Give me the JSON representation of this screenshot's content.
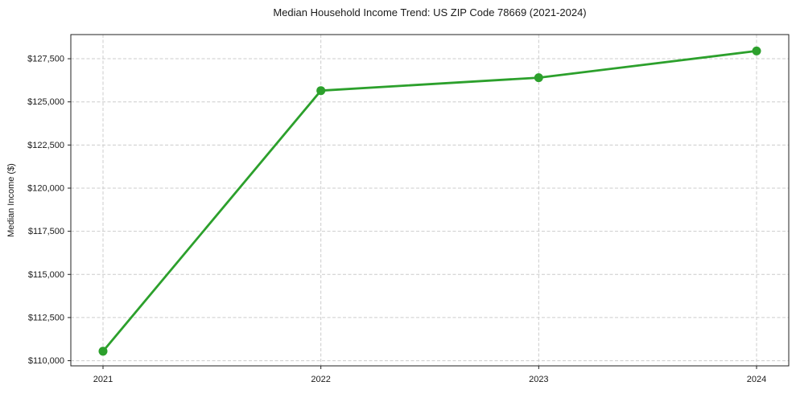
{
  "chart_data": {
    "type": "line",
    "title": "Median Household Income Trend: US ZIP Code 78669 (2021-2024)",
    "xlabel": "",
    "ylabel": "Median Income ($)",
    "categories": [
      "2021",
      "2022",
      "2023",
      "2024"
    ],
    "values": [
      110550,
      125650,
      126400,
      127950
    ],
    "ylim": [
      109700,
      128900
    ],
    "yticks": [
      110000,
      112500,
      115000,
      117500,
      120000,
      122500,
      125000,
      127500
    ],
    "ytick_labels": [
      "$110,000",
      "$112,500",
      "$115,000",
      "$117,500",
      "$120,000",
      "$122,500",
      "$125,000",
      "$127,500"
    ],
    "grid": true,
    "grid_style": "dashed",
    "legend": false,
    "line_color": "#2ca02c",
    "marker": "circle",
    "marker_color": "#2ca02c",
    "background_color": "#ffffff",
    "grid_color": "#cccccc",
    "axis_color": "#222222",
    "text_color": "#1a1a1a"
  }
}
